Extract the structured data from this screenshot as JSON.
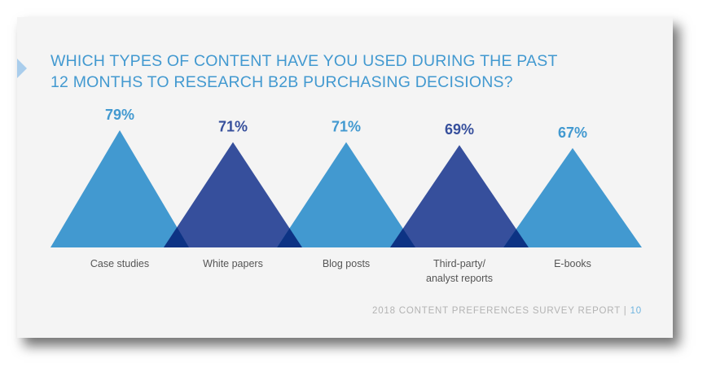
{
  "chart_data": {
    "type": "bar",
    "title": "WHICH TYPES OF CONTENT HAVE YOU USED DURING THE PAST 12 MONTHS TO RESEARCH B2B PURCHASING DECISIONS?",
    "title_lines": [
      "WHICH TYPES OF CONTENT HAVE YOU USED DURING THE PAST",
      "12 MONTHS TO RESEARCH B2B PURCHASING DECISIONS?"
    ],
    "categories": [
      "Case studies",
      "White papers",
      "Blog posts",
      "Third-party/ analyst reports",
      "E-books"
    ],
    "category_lines": [
      [
        "Case studies"
      ],
      [
        "White papers"
      ],
      [
        "Blog posts"
      ],
      [
        "Third-party/",
        "analyst reports"
      ],
      [
        "E-books"
      ]
    ],
    "values": [
      79,
      71,
      71,
      69,
      67
    ],
    "data_labels": [
      "79%",
      "71%",
      "71%",
      "69%",
      "67%"
    ],
    "unit": "%",
    "mark": "triangle",
    "colors": [
      "#4299d0",
      "#364f9c",
      "#4299d0",
      "#364f9c",
      "#4299d0"
    ],
    "overlap_color": "#0d3384",
    "grid": false
  },
  "footer": {
    "text": "2018 CONTENT PREFERENCES SURVEY REPORT | ",
    "page": "10"
  }
}
